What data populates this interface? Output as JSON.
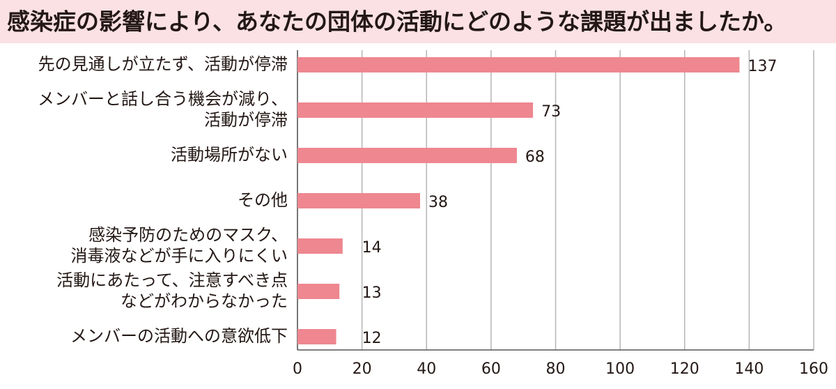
{
  "chart_data": {
    "type": "bar",
    "orientation": "horizontal",
    "title": "感染症の影響により、あなたの団体の活動にどのような課題が出ましたか。",
    "categories": [
      [
        "先の見通しが立たず、活動が停滞"
      ],
      [
        "メンバーと話し合う機会が減り、",
        "活動が停滞"
      ],
      [
        "活動場所がない"
      ],
      [
        "その他"
      ],
      [
        "感染予防のためのマスク、",
        "消毒液などが手に入りにくい"
      ],
      [
        "活動にあたって、注意すべき点",
        "などがわからなかった"
      ],
      [
        "メンバーの活動への意欲低下"
      ]
    ],
    "values": [
      137,
      73,
      68,
      38,
      14,
      13,
      12
    ],
    "color": "#ee8790",
    "xlim": [
      0,
      160
    ],
    "xticks": [
      0,
      20,
      40,
      60,
      80,
      100,
      120,
      140,
      160
    ],
    "grid": true
  }
}
